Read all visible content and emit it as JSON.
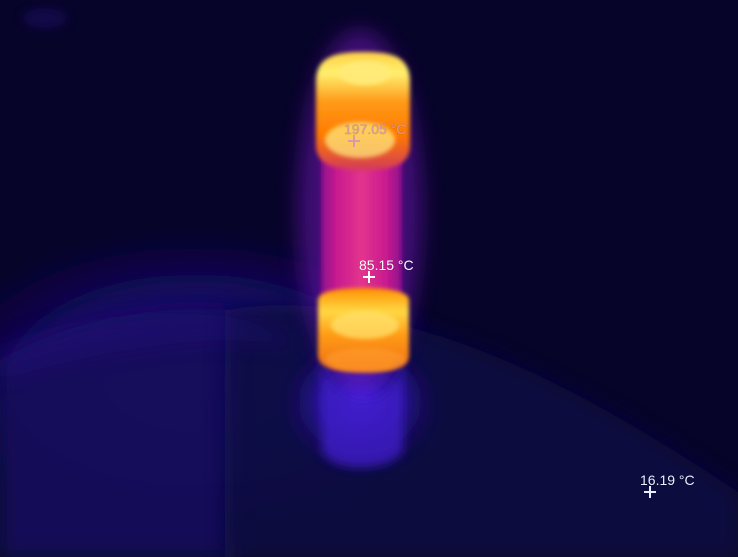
{
  "measurements": [
    {
      "id": "top",
      "temperature": "197.05 °C",
      "color": "#d99aa8"
    },
    {
      "id": "center",
      "temperature": "85.15 °C",
      "color": "#ffffff"
    },
    {
      "id": "corner",
      "temperature": "16.19 °C",
      "color": "#e8efff"
    }
  ],
  "palette": {
    "background": "#08052a",
    "cold": "#160a66",
    "warm": "#d0168e",
    "hot": "#ff8a00",
    "hottest": "#fff176"
  }
}
